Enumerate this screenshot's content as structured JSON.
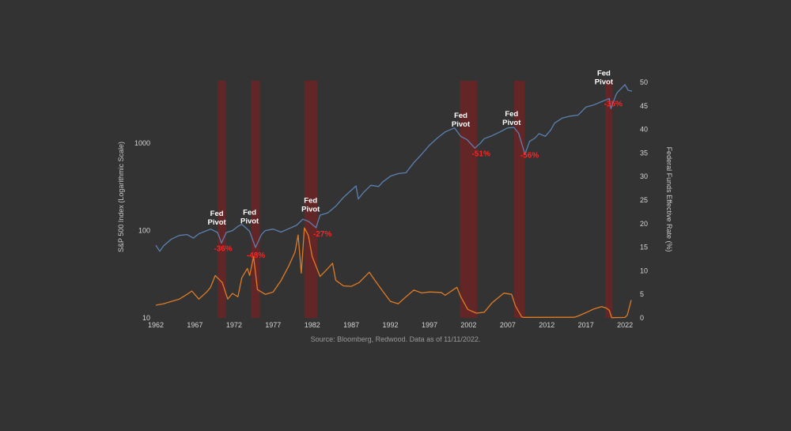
{
  "chart_data": {
    "type": "line",
    "x_range": [
      1962,
      2023
    ],
    "x_ticks": [
      "1962",
      "1967",
      "1972",
      "1977",
      "1982",
      "1987",
      "1992",
      "1997",
      "2002",
      "2007",
      "2012",
      "2017",
      "2022"
    ],
    "y_left": {
      "label": "S&P 500 Index (Logarithmic Scale)",
      "scale": "log",
      "range": [
        10,
        5000
      ],
      "ticks": [
        "10",
        "100",
        "1000"
      ]
    },
    "y_right": {
      "label": "Federal Funds Effective Rate (%)",
      "range": [
        0,
        50
      ],
      "ticks": [
        "0",
        "5",
        "10",
        "15",
        "20",
        "25",
        "30",
        "35",
        "40",
        "45",
        "50"
      ]
    },
    "colors": {
      "sp500": "#5b80b0",
      "fed_funds": "#e07b25",
      "band": "#6b2525",
      "drawdown": "#ff2222"
    },
    "series": [
      {
        "name": "S&P 500 Index",
        "axis": "left",
        "x": [
          1962.0,
          1962.5,
          1963.0,
          1964.0,
          1965.0,
          1966.0,
          1966.8,
          1967.5,
          1968.5,
          1969.0,
          1969.9,
          1970.4,
          1971.0,
          1971.8,
          1972.5,
          1973.0,
          1973.5,
          1974.0,
          1974.75,
          1975.5,
          1976.0,
          1977.0,
          1978.0,
          1979.0,
          1980.0,
          1980.8,
          1981.5,
          1982.5,
          1983.0,
          1984.0,
          1985.0,
          1986.0,
          1987.6,
          1987.9,
          1988.5,
          1989.5,
          1990.5,
          1991.0,
          1992.0,
          1993.0,
          1994.0,
          1995.0,
          1996.0,
          1997.0,
          1998.0,
          1999.0,
          2000.2,
          2001.0,
          2001.8,
          2002.8,
          2003.5,
          2004.0,
          2005.0,
          2006.0,
          2007.0,
          2007.8,
          2008.4,
          2009.2,
          2009.8,
          2010.5,
          2011.0,
          2011.8,
          2012.5,
          2013.0,
          2014.0,
          2015.0,
          2016.0,
          2017.0,
          2018.0,
          2019.0,
          2020.0,
          2020.2,
          2020.8,
          2021.0,
          2022.0,
          2022.4,
          2022.9
        ],
        "values": [
          68,
          58,
          67,
          80,
          88,
          90,
          82,
          92,
          100,
          104,
          95,
          72,
          95,
          100,
          112,
          118,
          108,
          98,
          64,
          90,
          100,
          104,
          96,
          105,
          115,
          135,
          128,
          108,
          150,
          160,
          190,
          240,
          325,
          230,
          270,
          330,
          320,
          360,
          420,
          450,
          460,
          600,
          750,
          950,
          1150,
          1350,
          1500,
          1200,
          1100,
          880,
          1000,
          1130,
          1220,
          1350,
          1500,
          1520,
          1300,
          750,
          1050,
          1150,
          1290,
          1200,
          1420,
          1700,
          1950,
          2050,
          2100,
          2600,
          2750,
          3000,
          3250,
          2500,
          3500,
          3800,
          4700,
          4050,
          3950
        ]
      },
      {
        "name": "Federal Funds Effective Rate",
        "axis": "right",
        "x": [
          1962.0,
          1963.0,
          1964.0,
          1965.0,
          1966.0,
          1966.6,
          1967.5,
          1968.5,
          1969.0,
          1969.6,
          1970.5,
          1971.2,
          1971.8,
          1972.5,
          1973.0,
          1973.7,
          1974.0,
          1974.5,
          1975.0,
          1976.0,
          1977.0,
          1978.0,
          1979.0,
          1979.8,
          1980.2,
          1980.6,
          1981.0,
          1981.5,
          1982.0,
          1982.6,
          1983.0,
          1984.0,
          1984.6,
          1985.0,
          1986.0,
          1987.0,
          1988.0,
          1989.3,
          1990.0,
          1991.0,
          1992.0,
          1993.0,
          1994.0,
          1995.0,
          1996.0,
          1997.0,
          1998.5,
          1999.0,
          2000.5,
          2001.0,
          2001.9,
          2003.0,
          2004.0,
          2005.0,
          2006.5,
          2007.5,
          2008.0,
          2008.8,
          2009.0,
          2015.5,
          2016.0,
          2017.0,
          2018.0,
          2019.0,
          2019.6,
          2020.0,
          2020.3,
          2022.0,
          2022.3,
          2022.8
        ],
        "values": [
          2.7,
          3.0,
          3.5,
          4.0,
          5.0,
          5.7,
          4.0,
          5.5,
          6.5,
          9.0,
          7.5,
          4.0,
          5.2,
          4.5,
          8.5,
          10.5,
          9.0,
          13.0,
          6.0,
          5.0,
          5.5,
          7.9,
          11.0,
          14.0,
          17.6,
          9.5,
          19.1,
          17.5,
          13.0,
          10.5,
          8.8,
          10.5,
          11.6,
          8.0,
          6.8,
          6.7,
          7.5,
          9.7,
          8.0,
          5.7,
          3.5,
          3.0,
          4.5,
          5.9,
          5.3,
          5.5,
          5.4,
          4.8,
          6.5,
          4.5,
          1.8,
          1.0,
          1.2,
          3.2,
          5.25,
          5.0,
          2.5,
          0.2,
          0.12,
          0.13,
          0.4,
          1.1,
          1.9,
          2.4,
          2.1,
          1.6,
          0.05,
          0.1,
          0.6,
          3.8
        ]
      }
    ],
    "pivot_bands": [
      {
        "start": 1969.9,
        "end": 1971.0
      },
      {
        "start": 1974.2,
        "end": 1975.3
      },
      {
        "start": 1981.0,
        "end": 1982.7
      },
      {
        "start": 2000.9,
        "end": 2003.1
      },
      {
        "start": 2007.8,
        "end": 2009.2
      },
      {
        "start": 2019.5,
        "end": 2020.4
      }
    ],
    "annotations": [
      {
        "text": "Fed Pivot",
        "x": 1969.8,
        "y": 148,
        "axis": "left",
        "type": "pivot"
      },
      {
        "text": "Fed Pivot",
        "x": 1974.0,
        "y": 152,
        "axis": "left",
        "type": "pivot"
      },
      {
        "text": "Fed Pivot",
        "x": 1981.8,
        "y": 208,
        "axis": "left",
        "type": "pivot"
      },
      {
        "text": "Fed Pivot",
        "x": 2001.0,
        "y": 1955,
        "axis": "left",
        "type": "pivot"
      },
      {
        "text": "Fed Pivot",
        "x": 2007.5,
        "y": 2050,
        "axis": "left",
        "type": "pivot"
      },
      {
        "text": "Fed Pivot",
        "x": 2019.3,
        "y": 5950,
        "axis": "left",
        "type": "pivot"
      },
      {
        "text": "-36%",
        "x": 1970.6,
        "y": 58,
        "axis": "left",
        "type": "drawdown"
      },
      {
        "text": "-48%",
        "x": 1974.8,
        "y": 49,
        "axis": "left",
        "type": "drawdown"
      },
      {
        "text": "-27%",
        "x": 1983.3,
        "y": 86,
        "axis": "left",
        "type": "drawdown"
      },
      {
        "text": "-51%",
        "x": 2003.6,
        "y": 715,
        "axis": "left",
        "type": "drawdown"
      },
      {
        "text": "-56%",
        "x": 2009.8,
        "y": 685,
        "axis": "left",
        "type": "drawdown"
      },
      {
        "text": "-35%",
        "x": 2020.5,
        "y": 2650,
        "axis": "left",
        "type": "drawdown"
      }
    ],
    "source": "Source: Bloomberg, Redwood. Data as of 11/11/2022."
  }
}
